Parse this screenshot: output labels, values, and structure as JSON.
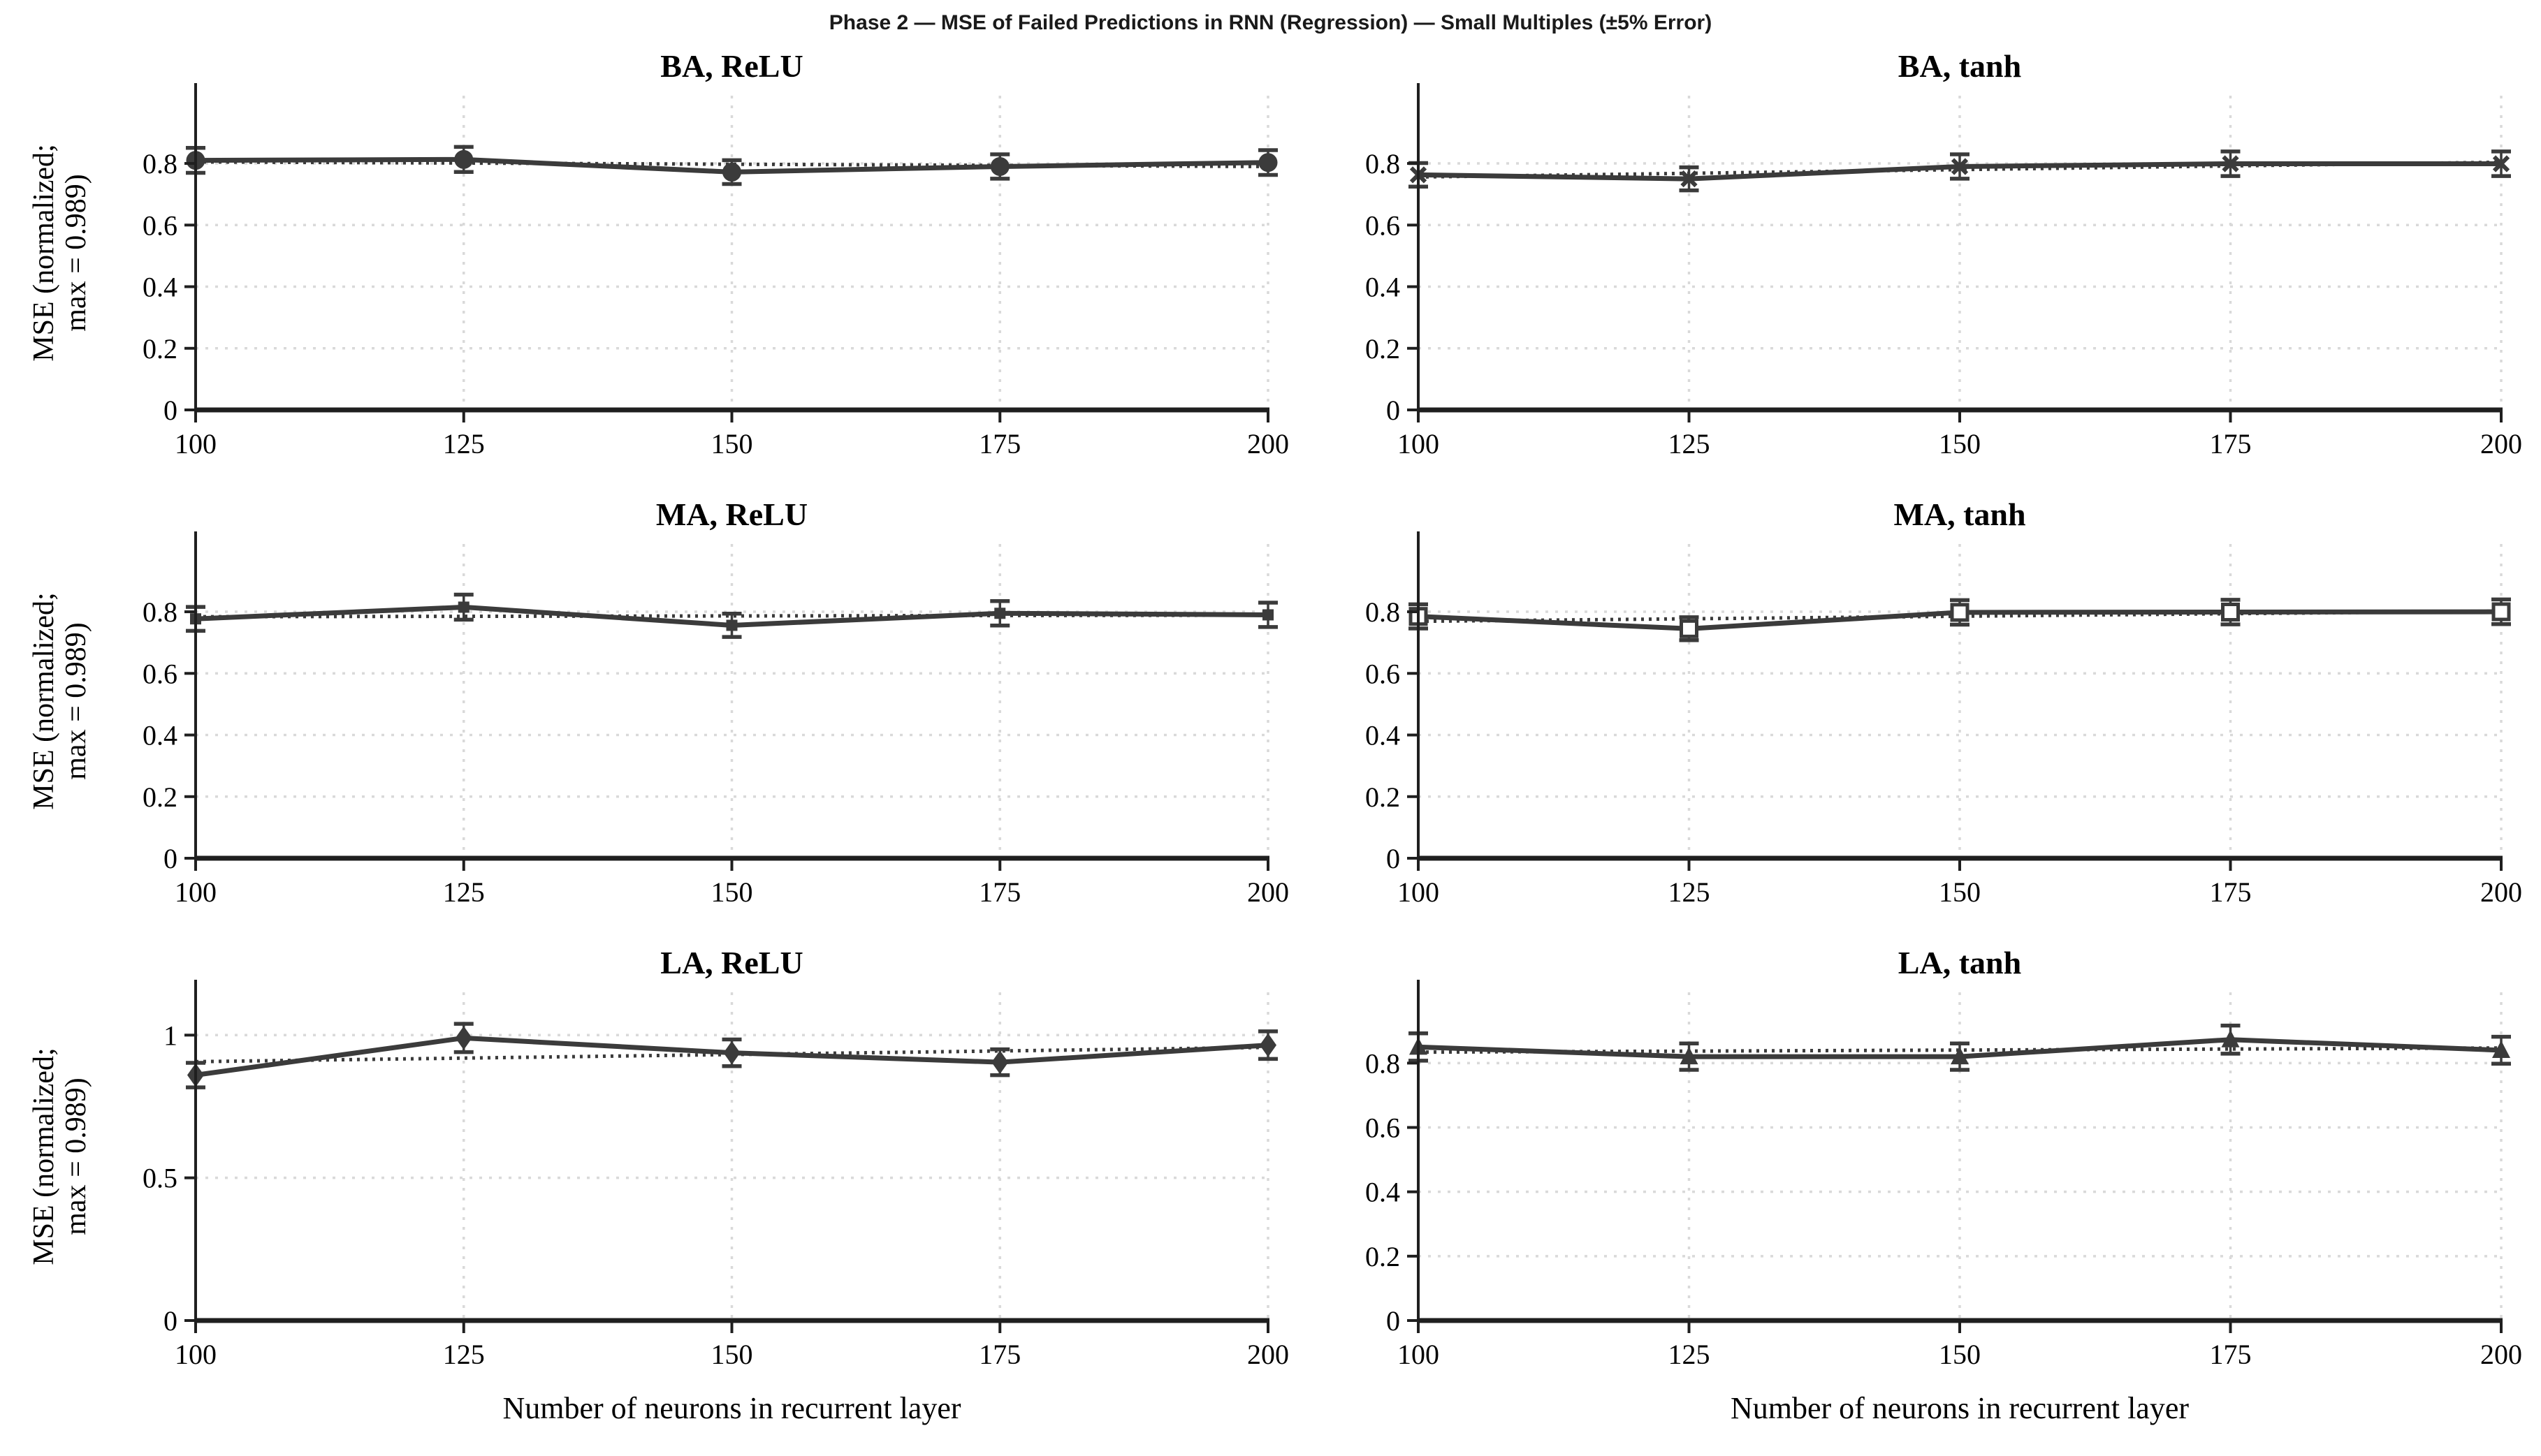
{
  "figure": {
    "suptitle": "Phase 2 — MSE of Failed Predictions in RNN (Regression) — Small Multiples (±5% Error)",
    "xlabel": "Number of neurons in recurrent layer",
    "ylabel_line1": "MSE (normalized;",
    "ylabel_line2": "max = 0.989)"
  },
  "colors": {
    "line": "#3b3b3b",
    "trend": "#3b3b3b",
    "grid": "#d9d9d9",
    "axis": "#1f1f1f",
    "text": "#000000"
  },
  "chart_data": [
    {
      "type": "line",
      "title": "BA, ReLU",
      "marker": "circle",
      "x": [
        100,
        125,
        150,
        175,
        200
      ],
      "values": [
        0.81,
        0.813,
        0.772,
        0.79,
        0.803
      ],
      "error_pct": 5,
      "trend_endpoints": [
        0.805,
        0.79
      ],
      "yticks": [
        0,
        0.2,
        0.4,
        0.6,
        0.8
      ],
      "ytick_labels": [
        "0",
        "0.2",
        "0.4",
        "0.6",
        "0.8"
      ],
      "ylim": [
        0,
        1.02
      ],
      "xticks": [
        100,
        125,
        150,
        175,
        200
      ],
      "grid": "on",
      "has_ylabel": true,
      "has_xlabel": false
    },
    {
      "type": "line",
      "title": "BA, tanh",
      "marker": "x",
      "x": [
        100,
        125,
        150,
        175,
        200
      ],
      "values": [
        0.763,
        0.75,
        0.79,
        0.799,
        0.799
      ],
      "error_pct": 5,
      "trend_endpoints": [
        0.756,
        0.804
      ],
      "yticks": [
        0,
        0.2,
        0.4,
        0.6,
        0.8
      ],
      "ytick_labels": [
        "0",
        "0.2",
        "0.4",
        "0.6",
        "0.8"
      ],
      "ylim": [
        0,
        1.02
      ],
      "xticks": [
        100,
        125,
        150,
        175,
        200
      ],
      "grid": "on",
      "has_ylabel": false,
      "has_xlabel": false
    },
    {
      "type": "line",
      "title": "MA, ReLU",
      "marker": "square-small",
      "x": [
        100,
        125,
        150,
        175,
        200
      ],
      "values": [
        0.777,
        0.815,
        0.756,
        0.795,
        0.79
      ],
      "error_pct": 5,
      "trend_endpoints": [
        0.784,
        0.789
      ],
      "yticks": [
        0,
        0.2,
        0.4,
        0.6,
        0.8
      ],
      "ytick_labels": [
        "0",
        "0.2",
        "0.4",
        "0.6",
        "0.8"
      ],
      "ylim": [
        0,
        1.02
      ],
      "xticks": [
        100,
        125,
        150,
        175,
        200
      ],
      "grid": "on",
      "has_ylabel": true,
      "has_xlabel": false
    },
    {
      "type": "line",
      "title": "MA, tanh",
      "marker": "square",
      "x": [
        100,
        125,
        150,
        175,
        200
      ],
      "values": [
        0.785,
        0.745,
        0.798,
        0.799,
        0.8
      ],
      "error_pct": 5,
      "trend_endpoints": [
        0.769,
        0.802
      ],
      "yticks": [
        0,
        0.2,
        0.4,
        0.6,
        0.8
      ],
      "ytick_labels": [
        "0",
        "0.2",
        "0.4",
        "0.6",
        "0.8"
      ],
      "ylim": [
        0,
        1.02
      ],
      "xticks": [
        100,
        125,
        150,
        175,
        200
      ],
      "grid": "on",
      "has_ylabel": false,
      "has_xlabel": false
    },
    {
      "type": "line",
      "title": "LA, ReLU",
      "marker": "diamond",
      "x": [
        100,
        125,
        150,
        175,
        200
      ],
      "values": [
        0.86,
        0.99,
        0.938,
        0.905,
        0.965
      ],
      "error_pct": 5,
      "trend_endpoints": [
        0.907,
        0.957
      ],
      "yticks": [
        0,
        0.5,
        1
      ],
      "ytick_labels": [
        "0",
        "0.5",
        "1"
      ],
      "ylim": [
        0,
        1.15
      ],
      "xticks": [
        100,
        125,
        150,
        175,
        200
      ],
      "grid": "on",
      "has_ylabel": true,
      "has_xlabel": true
    },
    {
      "type": "line",
      "title": "LA, tanh",
      "marker": "triangle",
      "x": [
        100,
        125,
        150,
        175,
        200
      ],
      "values": [
        0.85,
        0.82,
        0.82,
        0.873,
        0.84
      ],
      "error_pct": 5,
      "trend_endpoints": [
        0.834,
        0.847
      ],
      "yticks": [
        0,
        0.2,
        0.4,
        0.6,
        0.8
      ],
      "ytick_labels": [
        "0",
        "0.2",
        "0.4",
        "0.6",
        "0.8"
      ],
      "ylim": [
        0,
        1.02
      ],
      "xticks": [
        100,
        125,
        150,
        175,
        200
      ],
      "grid": "on",
      "has_ylabel": false,
      "has_xlabel": true
    }
  ]
}
